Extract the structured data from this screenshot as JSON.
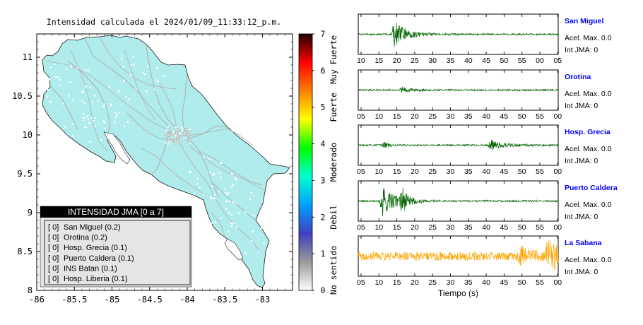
{
  "map": {
    "title": "Intensidad calculada el 2024/01/09_11:33:12_p.m.",
    "x_ticks": [
      "-86",
      "-85.5",
      "-85",
      "-84.5",
      "-84",
      "-83.5",
      "-83"
    ],
    "y_ticks": [
      "11",
      "10.5",
      "10",
      "9.5",
      "9",
      "8.5",
      "8"
    ],
    "xlim": [
      -86,
      -82.6
    ],
    "ylim": [
      8,
      11.3
    ],
    "land_color": "#b0ecec",
    "road_color": "#b4b4b4"
  },
  "colorbar": {
    "ticks": [
      "0",
      "1",
      "2",
      "3",
      "4",
      "5",
      "6",
      "7"
    ],
    "labels": [
      "No sentido",
      "Debil",
      "Moderado",
      "Fuerte",
      "Muy Fuerte"
    ],
    "colors": [
      "#ffffff",
      "#9a9a9a",
      "#4040c0",
      "#00a0ff",
      "#00ffd0",
      "#00ff00",
      "#ffff00",
      "#ff8000",
      "#ff0000",
      "#200000"
    ]
  },
  "legend": {
    "title": "INTENSIDAD JMA [0 a 7]",
    "items": [
      {
        "level": "[ 0]",
        "station": "San Miguel (0.2)"
      },
      {
        "level": "[ 0]",
        "station": "Orotina (0.2)"
      },
      {
        "level": "[ 0]",
        "station": "Hosp. Grecia (0.1)"
      },
      {
        "level": "[ 0]",
        "station": "Puerto Caldera (0.1)"
      },
      {
        "level": "[ 0]",
        "station": "INS Batan (0.1)"
      },
      {
        "level": "[ 0]",
        "station": "Hosp. Liberia (0.1)"
      }
    ]
  },
  "chart_data": [
    {
      "type": "line",
      "name": "San Miguel",
      "accel_label": "Acel. Max. 0.0",
      "jma_label": "Int JMA: 0",
      "color": "#006400",
      "x_ticks": [
        "10",
        "15",
        "20",
        "25",
        "30",
        "35",
        "40",
        "45",
        "50",
        "55",
        "00",
        "05"
      ],
      "bursts": [
        [
          18,
          3.0,
          1.0
        ]
      ]
    },
    {
      "type": "line",
      "name": "Orotina",
      "accel_label": "Acel. Max. 0.0",
      "jma_label": "Int JMA: 0",
      "color": "#006400",
      "x_ticks": [
        "05",
        "10",
        "15",
        "20",
        "25",
        "30",
        "35",
        "40",
        "45",
        "50",
        "55",
        "00"
      ],
      "bursts": [
        [
          22,
          0.6,
          1.0
        ]
      ]
    },
    {
      "type": "line",
      "name": "Hosp. Grecia",
      "accel_label": "Acel. Max. 0.0",
      "jma_label": "Int JMA: 0",
      "color": "#006400",
      "x_ticks": [
        "05",
        "10",
        "15",
        "20",
        "25",
        "30",
        "35",
        "40",
        "45",
        "50",
        "55",
        "00"
      ],
      "bursts": [
        [
          13,
          0.8,
          0.4
        ],
        [
          66,
          1.2,
          1.0
        ]
      ]
    },
    {
      "type": "line",
      "name": "Puerto Caldera",
      "accel_label": "Acel. Max. 0.0",
      "jma_label": "Int JMA: 0",
      "color": "#006400",
      "x_ticks": [
        "05",
        "10",
        "15",
        "20",
        "25",
        "30",
        "35",
        "40",
        "45",
        "50",
        "55",
        "00"
      ],
      "bursts": [
        [
          12,
          3.5,
          1.0
        ],
        [
          22,
          3.0,
          0.5
        ]
      ]
    },
    {
      "type": "line",
      "name": "La Sabana",
      "accel_label": "Acel. Max. 0.0",
      "jma_label": "Int JMA: 0",
      "color": "#ffa500",
      "x_ticks": [
        "05",
        "10",
        "15",
        "20",
        "25",
        "30",
        "35",
        "40",
        "45",
        "50",
        "55",
        "00"
      ],
      "bursts": [
        [
          81,
          1.5,
          1.0
        ],
        [
          95,
          4.0,
          0.9
        ]
      ],
      "xlabel": "Tiempo (s)"
    }
  ]
}
